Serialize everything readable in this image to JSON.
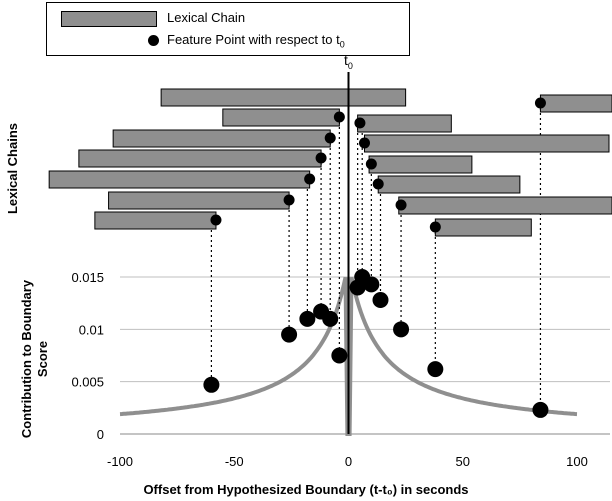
{
  "legend": {
    "chain_label": "Lexical Chain",
    "point_label": "Feature Point with respect to t",
    "point_label_sub": "0"
  },
  "t0_label": "t",
  "t0_sub": "0",
  "colors": {
    "bar_fill": "#8f8f8f",
    "curve": "#8f8f8f",
    "grid": "#bfbfbf",
    "point": "#000000"
  },
  "chart_data": {
    "type": "scatter",
    "title": "",
    "xlabel": "Offset from Hypothesized Boundary (t-t₀) in seconds",
    "ylabel_top": "Lexical Chains",
    "ylabel": "Contribution to Boundary Score",
    "xlim": [
      -100,
      100
    ],
    "ylim": [
      0,
      0.015
    ],
    "xticks": [
      -100,
      -50,
      0,
      50,
      100
    ],
    "xtick_labels": [
      "-100",
      "-50",
      "0",
      "50",
      "100"
    ],
    "yticks": [
      0,
      0.005,
      0.01,
      0.015
    ],
    "ytick_labels": [
      "0",
      "0.005",
      "0.01",
      "0.015"
    ],
    "grid": true,
    "chains": [
      {
        "start": -82,
        "end": 25,
        "feature": 84
      },
      {
        "start": -55,
        "end": -4,
        "feature": -4
      },
      {
        "start": -103,
        "end": -8,
        "feature": -8
      },
      {
        "start": -118,
        "end": -12,
        "feature": -12
      },
      {
        "start": -131,
        "end": -17,
        "feature": -17
      },
      {
        "start": -105,
        "end": -26,
        "feature": -26
      },
      {
        "start": -111,
        "end": -58,
        "feature": -58
      },
      {
        "start": 4,
        "end": 45,
        "feature": 5
      },
      {
        "start": 7,
        "end": 114,
        "feature": 7
      },
      {
        "start": 9,
        "end": 54,
        "feature": 10
      },
      {
        "start": 13,
        "end": 75,
        "feature": 13
      },
      {
        "start": 22,
        "end": 130,
        "feature": 23
      },
      {
        "start": 38,
        "end": 80,
        "feature": 38
      },
      {
        "start": 84,
        "end": 130,
        "feature": 84
      }
    ],
    "points": [
      {
        "x": -60,
        "y": 0.0047
      },
      {
        "x": -26,
        "y": 0.0095
      },
      {
        "x": -18,
        "y": 0.011
      },
      {
        "x": -12,
        "y": 0.0117
      },
      {
        "x": -8,
        "y": 0.011
      },
      {
        "x": -4,
        "y": 0.0075
      },
      {
        "x": 4,
        "y": 0.014
      },
      {
        "x": 6,
        "y": 0.015
      },
      {
        "x": 10,
        "y": 0.0143
      },
      {
        "x": 14,
        "y": 0.0128
      },
      {
        "x": 23,
        "y": 0.01
      },
      {
        "x": 38,
        "y": 0.0062
      },
      {
        "x": 84,
        "y": 0.0023
      }
    ],
    "curve_k": 0.0165
  }
}
